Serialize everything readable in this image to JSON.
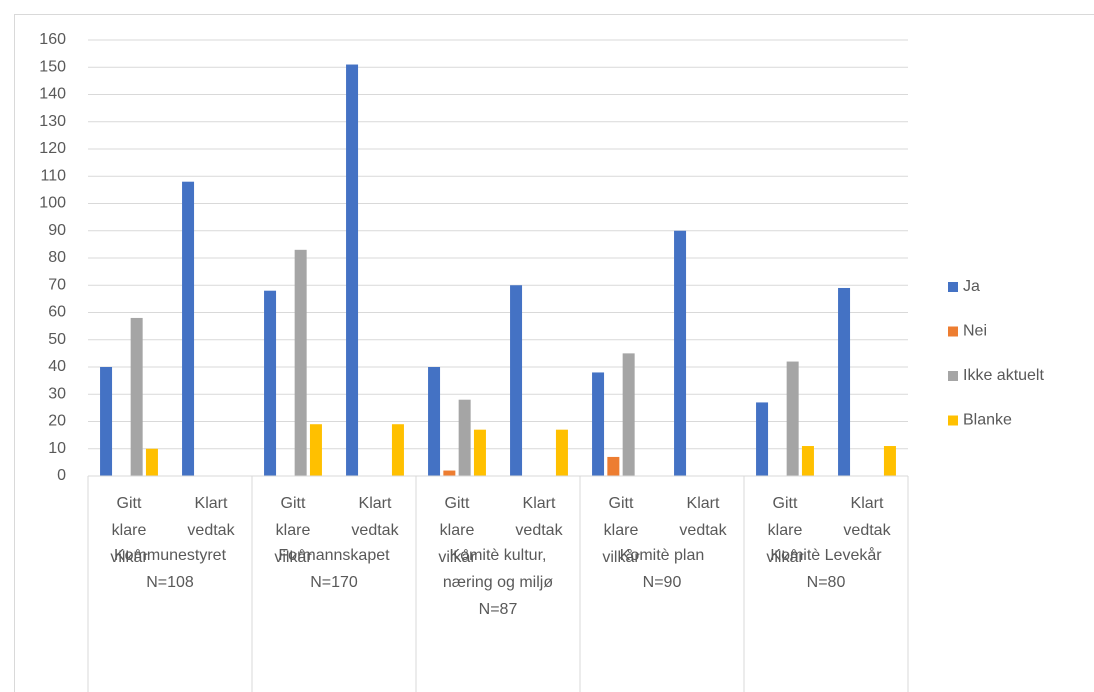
{
  "chart_data": {
    "type": "bar",
    "categories": [
      "Gitt\nklare\nvilkår",
      "Klart\nvedtak",
      "Gitt\nklare\nvilkår",
      "Klart\nvedtak",
      "Gitt\nklare\nvilkår",
      "Klart\nvedtak",
      "Gitt\nklare\nvilkår",
      "Klart\nvedtak",
      "Gitt\nklare\nvilkår",
      "Klart\nvedtak"
    ],
    "groups": [
      "Kommunestyret\nN=108",
      "Formannskapet\nN=170",
      "Komitè kultur,\nnæring og miljø\nN=87",
      "Komitè plan\nN=90",
      "Komitè Levekår\nN=80"
    ],
    "series": [
      {
        "name": "Ja",
        "color": "#4472c4",
        "values": [
          40,
          108,
          68,
          151,
          40,
          70,
          38,
          90,
          27,
          69
        ]
      },
      {
        "name": "Nei",
        "color": "#ed7d31",
        "values": [
          0,
          0,
          0,
          0,
          2,
          0,
          7,
          0,
          0,
          0
        ]
      },
      {
        "name": "Ikke aktuelt",
        "color": "#a5a5a5",
        "values": [
          58,
          0,
          83,
          0,
          28,
          0,
          45,
          0,
          42,
          0
        ]
      },
      {
        "name": "Blanke",
        "color": "#ffc000",
        "values": [
          10,
          0,
          19,
          19,
          17,
          17,
          0,
          0,
          11,
          11
        ]
      }
    ],
    "ylim": [
      0,
      160
    ],
    "yticks": [
      0,
      10,
      20,
      30,
      40,
      50,
      60,
      70,
      80,
      90,
      100,
      110,
      120,
      130,
      140,
      150,
      160
    ],
    "grid": true,
    "legend": "right"
  }
}
